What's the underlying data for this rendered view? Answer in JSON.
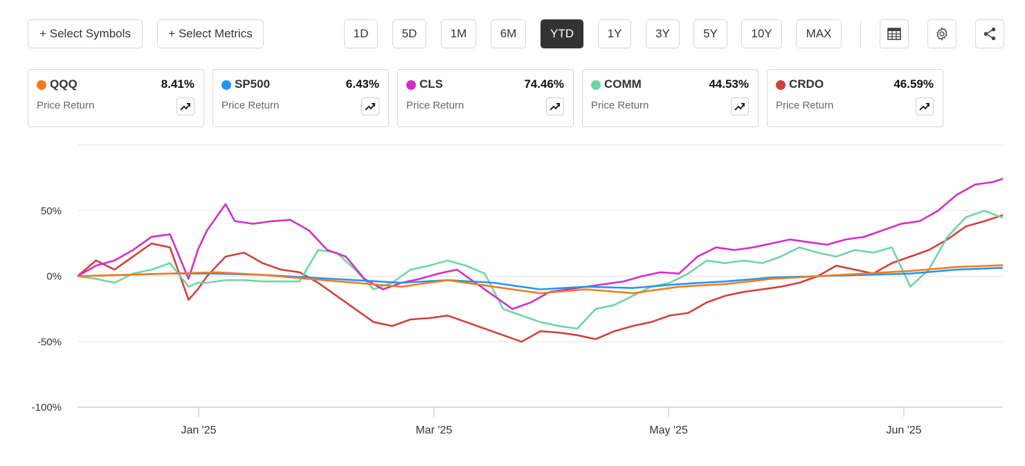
{
  "toolbar": {
    "select_symbols": "+ Select Symbols",
    "select_metrics": "+ Select Metrics",
    "ranges": [
      "1D",
      "5D",
      "1M",
      "6M",
      "YTD",
      "1Y",
      "3Y",
      "5Y",
      "10Y",
      "MAX"
    ],
    "active_range": "YTD",
    "icons": [
      "table-icon",
      "settings-icon",
      "share-icon"
    ]
  },
  "cards": [
    {
      "ticker": "QQQ",
      "value": "8.41%",
      "metric": "Price Return",
      "color": "#F47A1F"
    },
    {
      "ticker": "SP500",
      "value": "6.43%",
      "metric": "Price Return",
      "color": "#2196F3"
    },
    {
      "ticker": "CLS",
      "value": "74.46%",
      "metric": "Price Return",
      "color": "#D42CC8"
    },
    {
      "ticker": "COMM",
      "value": "44.53%",
      "metric": "Price Return",
      "color": "#6DD6A1"
    },
    {
      "ticker": "CRDO",
      "value": "46.59%",
      "metric": "Price Return",
      "color": "#D0403A"
    }
  ],
  "chart_data": {
    "type": "line",
    "x_ticks": [
      "Jan '25",
      "Mar '25",
      "May '25",
      "Jun '25"
    ],
    "y_ticks": [
      "50%",
      "0%",
      "-50%",
      "-100%"
    ],
    "ylim": [
      -100,
      100
    ],
    "grid": true,
    "series": [
      {
        "name": "QQQ",
        "color": "#F47A1F",
        "x": [
          0,
          5,
          10,
          15,
          20,
          25,
          30,
          35,
          40,
          45,
          50,
          55,
          60,
          65,
          70,
          75,
          80,
          85,
          90,
          95,
          100
        ],
        "y": [
          0,
          1,
          2,
          3,
          1,
          -2,
          -5,
          -8,
          -3,
          -8,
          -13,
          -10,
          -13,
          -8,
          -6,
          -2,
          0,
          2,
          4,
          7,
          8.41
        ]
      },
      {
        "name": "SP500",
        "color": "#2196F3",
        "x": [
          0,
          5,
          10,
          15,
          20,
          25,
          30,
          35,
          40,
          45,
          50,
          55,
          60,
          65,
          70,
          75,
          80,
          85,
          90,
          95,
          100
        ],
        "y": [
          0,
          1,
          2,
          2,
          1,
          -1,
          -3,
          -5,
          -3,
          -5,
          -10,
          -8,
          -9,
          -6,
          -4,
          -1,
          0,
          1,
          2,
          5,
          6.43
        ]
      },
      {
        "name": "CLS",
        "color": "#D42CC8",
        "x": [
          0,
          2,
          4,
          6,
          8,
          10,
          12,
          13,
          14,
          16,
          17,
          19,
          21,
          23,
          25,
          27,
          29,
          31,
          33,
          35,
          37,
          39,
          41,
          43,
          45,
          47,
          49,
          51,
          53,
          55,
          57,
          59,
          61,
          63,
          65,
          67,
          69,
          71,
          73,
          75,
          77,
          79,
          81,
          83,
          85,
          87,
          89,
          91,
          93,
          95,
          97,
          99,
          100
        ],
        "y": [
          0,
          8,
          12,
          20,
          30,
          32,
          -2,
          20,
          35,
          55,
          42,
          40,
          42,
          43,
          35,
          20,
          15,
          -2,
          -10,
          -5,
          -2,
          2,
          5,
          -5,
          -15,
          -25,
          -20,
          -12,
          -10,
          -8,
          -6,
          -4,
          0,
          3,
          2,
          15,
          22,
          20,
          22,
          25,
          28,
          26,
          24,
          28,
          30,
          35,
          40,
          42,
          50,
          62,
          70,
          72,
          74.46
        ]
      },
      {
        "name": "COMM",
        "color": "#6DD6A1",
        "x": [
          0,
          2,
          4,
          6,
          8,
          10,
          12,
          13,
          14,
          16,
          18,
          20,
          22,
          24,
          26,
          28,
          30,
          32,
          34,
          36,
          38,
          40,
          42,
          44,
          46,
          48,
          50,
          52,
          54,
          56,
          58,
          60,
          62,
          64,
          66,
          68,
          70,
          72,
          74,
          76,
          78,
          80,
          82,
          84,
          86,
          88,
          90,
          92,
          94,
          96,
          98,
          100
        ],
        "y": [
          0,
          -2,
          -5,
          2,
          5,
          10,
          -8,
          -5,
          -5,
          -3,
          -3,
          -4,
          -4,
          -4,
          20,
          18,
          5,
          -10,
          -5,
          5,
          8,
          12,
          8,
          2,
          -25,
          -30,
          -35,
          -38,
          -40,
          -25,
          -22,
          -15,
          -8,
          -5,
          2,
          12,
          10,
          12,
          10,
          15,
          22,
          18,
          15,
          20,
          18,
          22,
          -8,
          5,
          30,
          45,
          50,
          44.53
        ]
      },
      {
        "name": "CRDO",
        "color": "#D0403A",
        "x": [
          0,
          2,
          4,
          6,
          8,
          10,
          12,
          13,
          14,
          16,
          18,
          20,
          22,
          24,
          26,
          28,
          30,
          32,
          34,
          36,
          38,
          40,
          42,
          44,
          46,
          48,
          50,
          52,
          54,
          56,
          58,
          60,
          62,
          64,
          66,
          68,
          70,
          72,
          74,
          76,
          78,
          80,
          82,
          84,
          86,
          88,
          90,
          92,
          94,
          96,
          98,
          100
        ],
        "y": [
          0,
          12,
          5,
          15,
          25,
          22,
          -18,
          -10,
          0,
          15,
          18,
          10,
          5,
          3,
          -5,
          -15,
          -25,
          -35,
          -38,
          -33,
          -32,
          -30,
          -35,
          -40,
          -45,
          -50,
          -42,
          -43,
          -45,
          -48,
          -42,
          -38,
          -35,
          -30,
          -28,
          -20,
          -15,
          -12,
          -10,
          -8,
          -5,
          0,
          8,
          5,
          2,
          10,
          15,
          20,
          28,
          38,
          42,
          46.59
        ]
      }
    ]
  }
}
